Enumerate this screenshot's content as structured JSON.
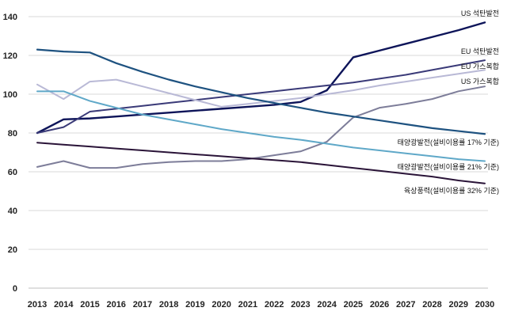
{
  "chart_data": {
    "type": "line",
    "title": "",
    "xlabel": "",
    "ylabel": "",
    "ylim": [
      0,
      140
    ],
    "yticks": [
      0,
      20,
      40,
      60,
      80,
      100,
      120,
      140
    ],
    "grid": true,
    "legend": "inline labels at line ends",
    "x": [
      2013,
      2014,
      2015,
      2016,
      2017,
      2018,
      2019,
      2020,
      2021,
      2022,
      2023,
      2024,
      2025,
      2026,
      2027,
      2028,
      2029,
      2030
    ],
    "series": [
      {
        "name": "US 석탄발전",
        "color": "#0d1459",
        "values": [
          80,
          87,
          87.5,
          88.5,
          89.5,
          90.5,
          91.5,
          92.5,
          93.5,
          94.5,
          96,
          102,
          119,
          122.5,
          126,
          129.5,
          133,
          137
        ]
      },
      {
        "name": "EU 석탄발전",
        "color": "#3a3a78",
        "values": [
          80,
          83,
          91,
          92.5,
          94,
          95.5,
          97,
          98.5,
          100,
          101.5,
          103,
          104.5,
          106,
          108,
          110,
          112.5,
          115,
          117.5
        ]
      },
      {
        "name": "EU 가스복합",
        "color": "#b9b9d6",
        "values": [
          105,
          97.5,
          106.5,
          107.5,
          104,
          100.5,
          97,
          93.5,
          95,
          96.5,
          98,
          100,
          102,
          104.5,
          106.5,
          108.5,
          110.5,
          112.5
        ]
      },
      {
        "name": "US 가스복합",
        "color": "#7d7d99",
        "values": [
          62.5,
          65.5,
          62,
          62,
          64,
          65,
          65.5,
          65.5,
          66.5,
          68.5,
          70.5,
          75.5,
          88,
          93,
          95,
          97.5,
          101.5,
          104
        ]
      },
      {
        "name": "태양광발전(설비이용률 17% 기준)",
        "color": "#1e5280",
        "values": [
          123,
          122,
          121.5,
          116,
          111.5,
          107.5,
          104,
          101,
          98,
          95.5,
          93,
          90.5,
          88.5,
          86.5,
          84.5,
          82.5,
          81,
          79.5
        ]
      },
      {
        "name": "태양광발전(설비이용률 21% 기준)",
        "color": "#5fa8c8",
        "values": [
          101.5,
          101.5,
          96.5,
          93,
          89.5,
          87,
          84.5,
          82,
          80,
          78,
          76.5,
          74.5,
          72.5,
          71,
          69.5,
          68,
          66.5,
          65.5
        ]
      },
      {
        "name": "육상풍력(설비이용률 32% 기준)",
        "color": "#2a1438",
        "values": [
          75,
          74,
          73,
          72,
          71,
          70,
          69,
          68,
          67,
          66,
          65,
          63.5,
          62,
          60.5,
          59,
          57.5,
          55.5,
          54
        ]
      }
    ]
  }
}
